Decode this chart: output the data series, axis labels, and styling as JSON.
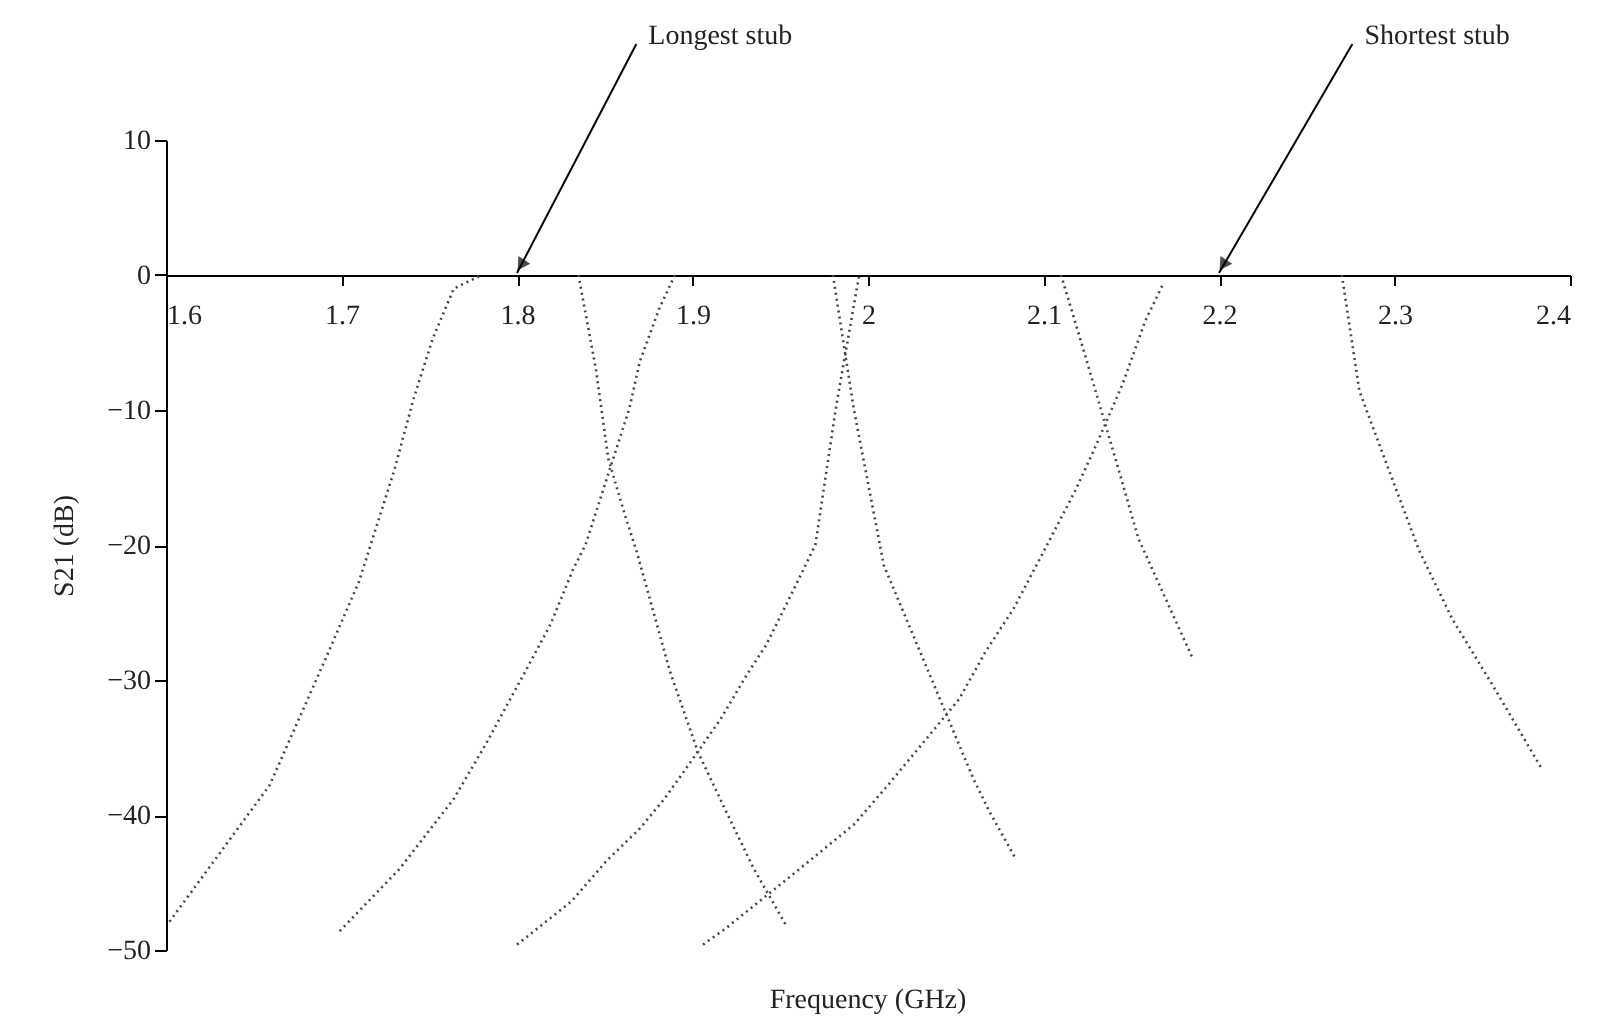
{
  "chart_data": {
    "type": "line",
    "xlabel": "Frequency (GHz)",
    "ylabel": "S21 (dB)",
    "xlim": [
      1.6,
      2.4
    ],
    "xticks": [
      1.6,
      1.7,
      1.8,
      1.9,
      2,
      2.1,
      2.2,
      2.3,
      2.4
    ],
    "ylim": [
      -50,
      10
    ],
    "yticks": [
      -50,
      -40,
      -30,
      -20,
      -10,
      0,
      10
    ],
    "grid": false,
    "legend": false,
    "marker": "none",
    "line_style": "dotted",
    "annotations": [
      "Longest stub",
      "Shortest stub"
    ],
    "series": [
      {
        "color": "#444444",
        "x": [
          1.602,
          1.659,
          1.691,
          1.71,
          1.73,
          1.741,
          1.752,
          1.764,
          1.78
        ],
        "values": [
          -47.9,
          -37.8,
          -28.4,
          -22.7,
          -14.5,
          -9.2,
          -4.7,
          -1.0,
          0
        ]
      },
      {
        "color": "#444444",
        "x": [
          1.699,
          1.733,
          1.764,
          1.782,
          1.805,
          1.819,
          1.832,
          1.839,
          1.864,
          1.87,
          1.881,
          1.89
        ],
        "values": [
          -48.6,
          -44,
          -38.8,
          -34.8,
          -29.3,
          -25.9,
          -21.8,
          -20,
          -9.9,
          -6.4,
          -2.5,
          0
        ]
      },
      {
        "color": "#444444",
        "x": [
          1.835,
          1.845,
          1.852,
          1.862,
          1.868,
          1.887,
          1.903,
          1.919,
          1.935,
          1.953
        ],
        "values": [
          0,
          -7,
          -13.6,
          -18,
          -20.4,
          -29.3,
          -35.3,
          -39.7,
          -44,
          -48.1
        ]
      },
      {
        "color": "#444444",
        "x": [
          1.8,
          1.831,
          1.851,
          1.87,
          1.884,
          1.895,
          1.916,
          1.931,
          1.942,
          1.955,
          1.97,
          1.982,
          1.995
        ],
        "values": [
          -49.6,
          -46.4,
          -43.4,
          -41,
          -38.8,
          -36.8,
          -32.9,
          -29.6,
          -27.4,
          -24,
          -20,
          -9.6,
          0
        ]
      },
      {
        "color": "#444444",
        "x": [
          1.98,
          1.992,
          2.009,
          2.06,
          2.069,
          2.084
        ],
        "values": [
          0,
          -10,
          -21.5,
          -37.3,
          -39.7,
          -43.2
        ]
      },
      {
        "color": "#444444",
        "x": [
          1.906,
          1.919,
          1.938,
          1.961,
          1.992,
          2.01,
          2.033,
          2.052,
          2.067,
          2.083,
          2.098,
          2.118,
          2.13,
          2.145,
          2.158,
          2.168
        ],
        "values": [
          -49.6,
          -48.4,
          -46.4,
          -44,
          -40.7,
          -38,
          -34.4,
          -31.4,
          -27.9,
          -24.7,
          -21,
          -16,
          -12.6,
          -8.1,
          -3.4,
          -0.7
        ]
      },
      {
        "color": "#444444",
        "x": [
          2.11,
          2.122,
          2.143,
          2.154,
          2.185
        ],
        "values": [
          0,
          -5.2,
          -14.5,
          -19.5,
          -28.4
        ]
      },
      {
        "color": "#444444",
        "x": [
          2.27,
          2.28,
          2.303,
          2.314,
          2.333,
          2.356,
          2.384
        ],
        "values": [
          0,
          -8.6,
          -16.6,
          -20.4,
          -25.5,
          -30.4,
          -36.6
        ]
      }
    ]
  }
}
